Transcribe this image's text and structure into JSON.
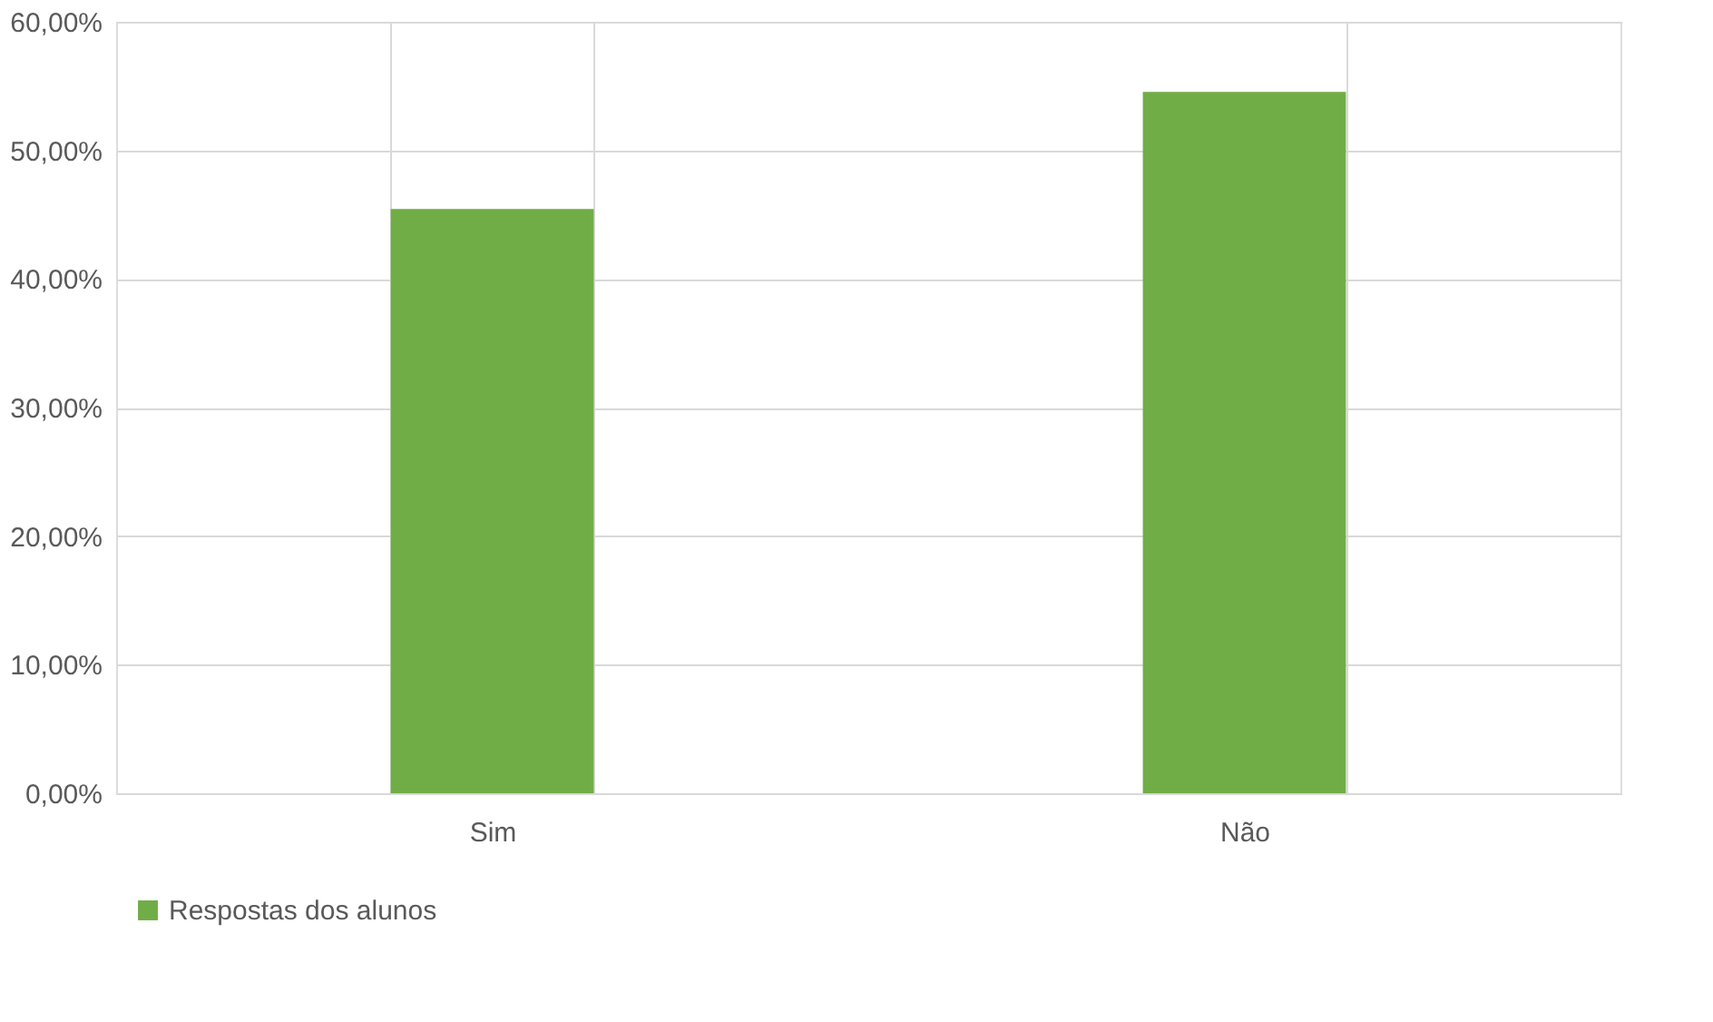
{
  "chart_data": {
    "type": "bar",
    "categories": [
      "Sim",
      "Não"
    ],
    "series": [
      {
        "name": "Respostas dos alunos",
        "color": "#70ad47",
        "values": [
          45.45,
          54.55
        ]
      }
    ],
    "ylim": [
      0,
      60
    ],
    "yticks": [
      {
        "value": 0,
        "label": "0,00%"
      },
      {
        "value": 10,
        "label": "10,00%"
      },
      {
        "value": 20,
        "label": "20,00%"
      },
      {
        "value": 30,
        "label": "30,00%"
      },
      {
        "value": 40,
        "label": "40,00%"
      },
      {
        "value": 50,
        "label": "50,00%"
      },
      {
        "value": 60,
        "label": "60,00%"
      }
    ],
    "grid": true,
    "legend": "bottom"
  }
}
